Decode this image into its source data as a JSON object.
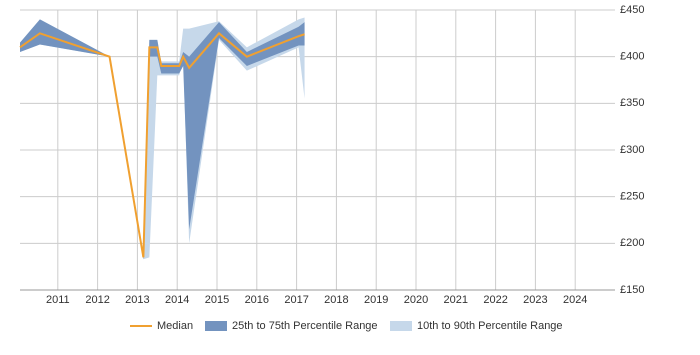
{
  "chart_data": {
    "type": "line",
    "x": [
      2010.05,
      2010.55,
      2012.3,
      2013.15,
      2013.3,
      2013.5,
      2013.6,
      2014.05,
      2014.15,
      2014.3,
      2015.05,
      2015.75,
      2017.05,
      2017.2
    ],
    "series": [
      {
        "name": "10th to 90th Percentile Range",
        "color": "#c6d8ea",
        "kind": "range",
        "low": [
          405,
          413,
          400,
          183,
          185,
          380,
          380,
          380,
          398,
          200,
          418,
          385,
          410,
          355
        ],
        "high": [
          415,
          440,
          400,
          185,
          418,
          418,
          395,
          395,
          430,
          430,
          438,
          410,
          440,
          442
        ]
      },
      {
        "name": "25th to 75th Percentile Range",
        "color": "#7393bf",
        "kind": "range",
        "low": [
          405,
          413,
          400,
          183,
          400,
          400,
          382,
          382,
          390,
          215,
          420,
          390,
          412,
          412
        ],
        "high": [
          415,
          440,
          400,
          185,
          418,
          418,
          393,
          393,
          405,
          400,
          437,
          405,
          432,
          437
        ]
      },
      {
        "name": "Median",
        "color": "#f0a030",
        "kind": "line",
        "values": [
          410,
          425,
          400,
          185,
          410,
          410,
          390,
          390,
          400,
          388,
          425,
          400,
          422,
          424
        ]
      }
    ],
    "xlim": [
      2010.05,
      2025
    ],
    "xticks": [
      2011,
      2012,
      2013,
      2014,
      2015,
      2016,
      2017,
      2018,
      2019,
      2020,
      2021,
      2022,
      2023,
      2024
    ],
    "ylim": [
      150,
      450
    ],
    "yticks": [
      {
        "value": 150,
        "label": "£150"
      },
      {
        "value": 200,
        "label": "£200"
      },
      {
        "value": 250,
        "label": "£250"
      },
      {
        "value": 300,
        "label": "£300"
      },
      {
        "value": 350,
        "label": "£350"
      },
      {
        "value": 400,
        "label": "£400"
      },
      {
        "value": 450,
        "label": "£450"
      }
    ],
    "grid": true,
    "legend": "bottom"
  }
}
